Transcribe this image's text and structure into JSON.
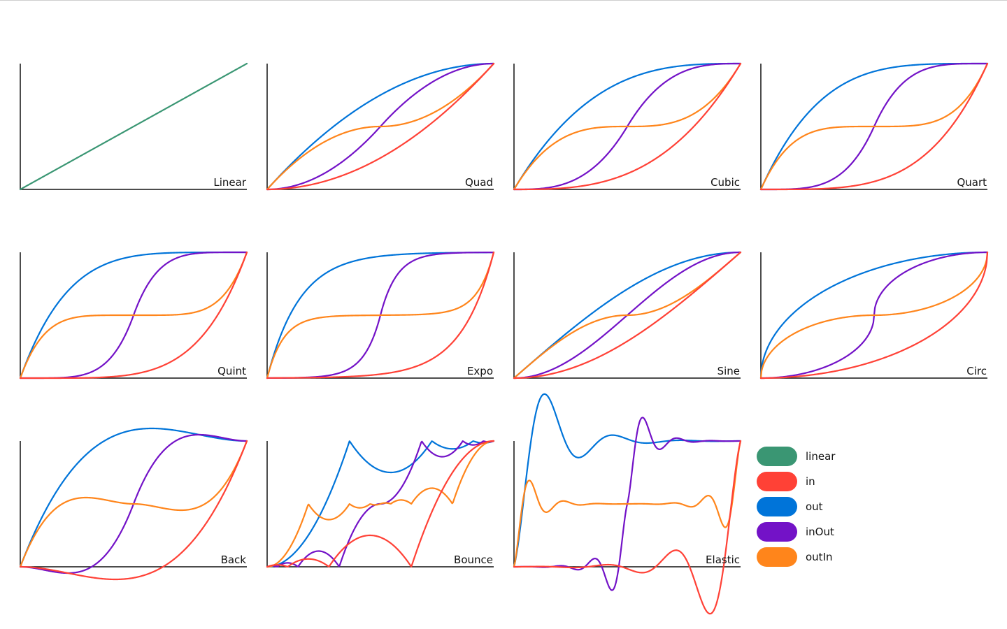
{
  "chart_data": {
    "type": "line",
    "series_keys": [
      "linear",
      "in",
      "out",
      "inOut",
      "outIn"
    ],
    "legend": {
      "placement": "bottom-right",
      "entries": [
        {
          "key": "linear",
          "label": "linear",
          "color": "#3a9673"
        },
        {
          "key": "in",
          "label": "in",
          "color": "#ff4136"
        },
        {
          "key": "out",
          "label": "out",
          "color": "#0074d9"
        },
        {
          "key": "inOut",
          "label": "inOut",
          "color": "#7312c7"
        },
        {
          "key": "outIn",
          "label": "outIn",
          "color": "#ff851b"
        }
      ]
    },
    "panels": [
      {
        "label": "Linear",
        "easing": "linear",
        "xlim": [
          0,
          1
        ],
        "ylim": [
          0,
          1
        ],
        "series": [
          "linear"
        ]
      },
      {
        "label": "Quad",
        "easing": "quad",
        "xlim": [
          0,
          1
        ],
        "ylim": [
          0,
          1
        ],
        "series": [
          "out",
          "inOut",
          "outIn",
          "in"
        ]
      },
      {
        "label": "Cubic",
        "easing": "cubic",
        "xlim": [
          0,
          1
        ],
        "ylim": [
          0,
          1
        ],
        "series": [
          "out",
          "inOut",
          "outIn",
          "in"
        ]
      },
      {
        "label": "Quart",
        "easing": "quart",
        "xlim": [
          0,
          1
        ],
        "ylim": [
          0,
          1
        ],
        "series": [
          "out",
          "inOut",
          "outIn",
          "in"
        ]
      },
      {
        "label": "Quint",
        "easing": "quint",
        "xlim": [
          0,
          1
        ],
        "ylim": [
          0,
          1
        ],
        "series": [
          "out",
          "inOut",
          "outIn",
          "in"
        ]
      },
      {
        "label": "Expo",
        "easing": "expo",
        "xlim": [
          0,
          1
        ],
        "ylim": [
          0,
          1
        ],
        "series": [
          "out",
          "inOut",
          "outIn",
          "in"
        ]
      },
      {
        "label": "Sine",
        "easing": "sine",
        "xlim": [
          0,
          1
        ],
        "ylim": [
          0,
          1
        ],
        "series": [
          "out",
          "inOut",
          "outIn",
          "in"
        ]
      },
      {
        "label": "Circ",
        "easing": "circ",
        "xlim": [
          0,
          1
        ],
        "ylim": [
          0,
          1
        ],
        "series": [
          "out",
          "inOut",
          "outIn",
          "in"
        ]
      },
      {
        "label": "Back",
        "easing": "back",
        "xlim": [
          0,
          1
        ],
        "ylim": [
          0,
          1
        ],
        "series": [
          "out",
          "inOut",
          "outIn",
          "in"
        ]
      },
      {
        "label": "Bounce",
        "easing": "bounce",
        "xlim": [
          0,
          1
        ],
        "ylim": [
          0,
          1
        ],
        "series": [
          "out",
          "inOut",
          "outIn",
          "in"
        ]
      },
      {
        "label": "Elastic",
        "easing": "elastic",
        "xlim": [
          0,
          1
        ],
        "ylim": [
          0,
          1
        ],
        "series": [
          "out",
          "inOut",
          "outIn",
          "in"
        ]
      }
    ],
    "grid": false
  }
}
